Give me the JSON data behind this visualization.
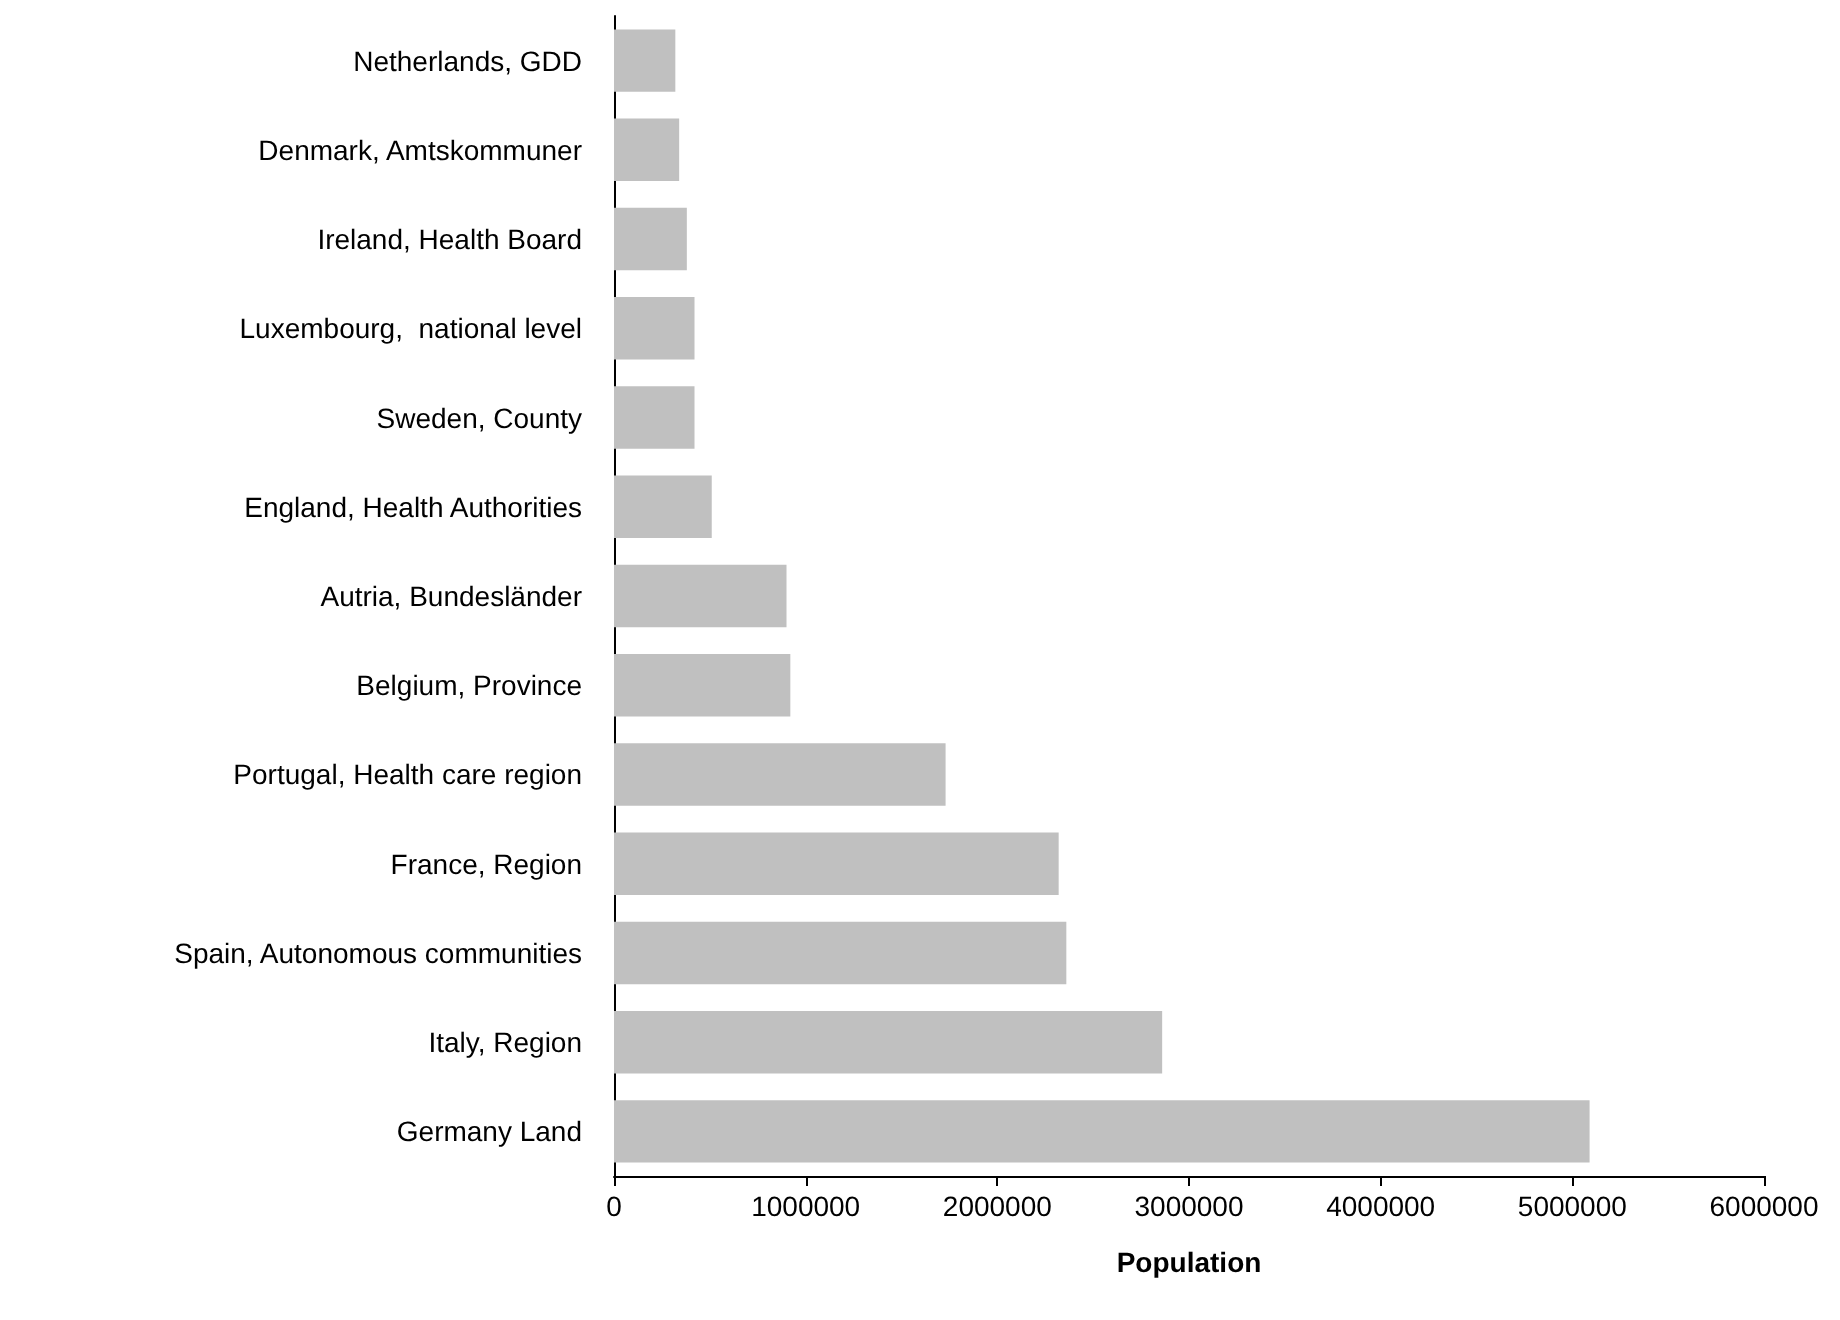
{
  "chart_data": {
    "type": "bar",
    "orientation": "horizontal",
    "xlabel": "Population",
    "categories": [
      "Netherlands, GDD",
      "Denmark, Amtskommuner",
      "Ireland, Health Board",
      "Luxembourg,  national level",
      "Sweden, County",
      "England, Health Authorities",
      "Autria, Bundesländer",
      "Belgium, Province",
      "Portugal, Health care region",
      "France, Region",
      "Spain, Autonomous communities",
      "Italy, Region",
      "Germany Land"
    ],
    "values": [
      320000,
      340000,
      380000,
      420000,
      420000,
      510000,
      900000,
      920000,
      1730000,
      2320000,
      2360000,
      2860000,
      5090000
    ],
    "color": "#c0c0c0",
    "xlim": [
      0,
      6000000
    ],
    "xticks": [
      0,
      1000000,
      2000000,
      3000000,
      4000000,
      5000000,
      6000000
    ],
    "grid": false
  }
}
